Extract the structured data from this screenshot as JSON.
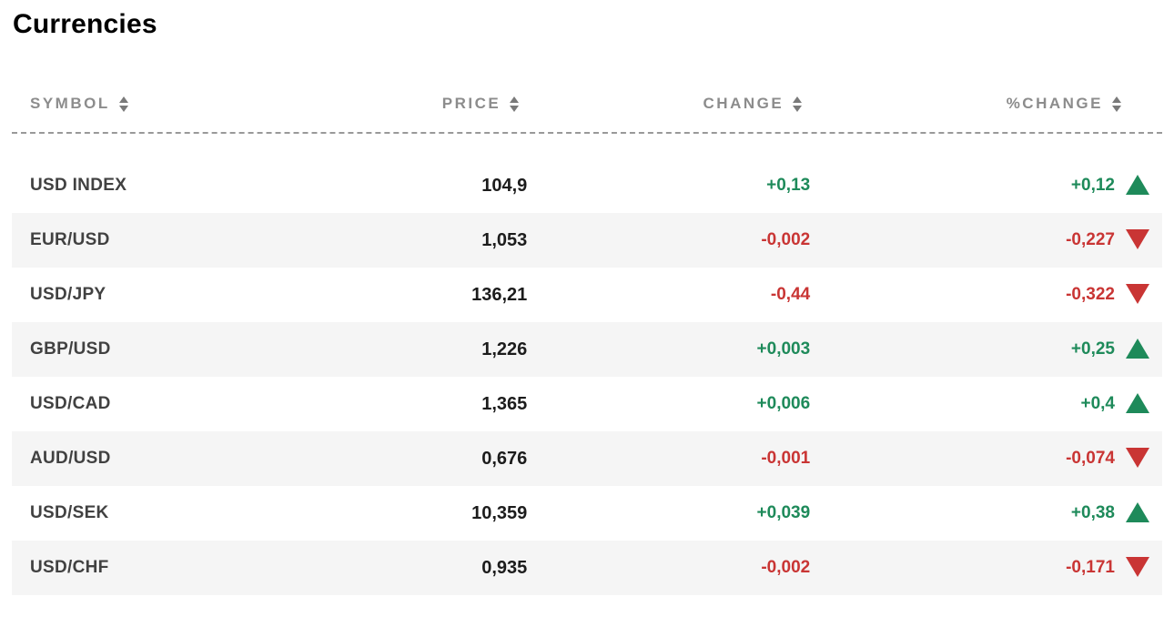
{
  "title": "Currencies",
  "colors": {
    "positive": "#1e8a5a",
    "negative": "#c93534",
    "row_alt_bg": "#f5f5f5",
    "header_text": "#8c8c8c",
    "symbol_text": "#414141",
    "price_text": "#1c1c1c",
    "divider": "#999999"
  },
  "icons": {
    "sort": "sort-arrows (stacked up/down triangles)",
    "up": "solid green up triangle",
    "down": "solid red down triangle"
  },
  "table": {
    "columns": [
      {
        "key": "symbol",
        "label": "SYMBOL",
        "sortable": true
      },
      {
        "key": "price",
        "label": "PRICE",
        "sortable": true
      },
      {
        "key": "change",
        "label": "CHANGE",
        "sortable": true
      },
      {
        "key": "pct_change",
        "label": "%CHANGE",
        "sortable": true
      }
    ],
    "rows": [
      {
        "symbol": "USD INDEX",
        "price": "104,9",
        "change": "+0,13",
        "pct_change": "+0,12",
        "direction": "up"
      },
      {
        "symbol": "EUR/USD",
        "price": "1,053",
        "change": "-0,002",
        "pct_change": "-0,227",
        "direction": "down"
      },
      {
        "symbol": "USD/JPY",
        "price": "136,21",
        "change": "-0,44",
        "pct_change": "-0,322",
        "direction": "down"
      },
      {
        "symbol": "GBP/USD",
        "price": "1,226",
        "change": "+0,003",
        "pct_change": "+0,25",
        "direction": "up"
      },
      {
        "symbol": "USD/CAD",
        "price": "1,365",
        "change": "+0,006",
        "pct_change": "+0,4",
        "direction": "up"
      },
      {
        "symbol": "AUD/USD",
        "price": "0,676",
        "change": "-0,001",
        "pct_change": "-0,074",
        "direction": "down"
      },
      {
        "symbol": "USD/SEK",
        "price": "10,359",
        "change": "+0,039",
        "pct_change": "+0,38",
        "direction": "up"
      },
      {
        "symbol": "USD/CHF",
        "price": "0,935",
        "change": "-0,002",
        "pct_change": "-0,171",
        "direction": "down"
      }
    ]
  }
}
